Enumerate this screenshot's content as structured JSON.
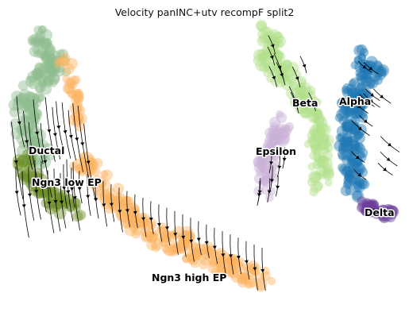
{
  "figure": {
    "title": "Velocity panINC+utv recompF split2"
  },
  "clusters": [
    {
      "name": "Ductal",
      "color": "#8fbc8f"
    },
    {
      "name": "Ngn3 low EP",
      "color": "#6b8e23"
    },
    {
      "name": "Ngn3 high EP",
      "color": "#fdb462"
    },
    {
      "name": "Beta",
      "color": "#b2df8a"
    },
    {
      "name": "Alpha",
      "color": "#1f78b4"
    },
    {
      "name": "Epsilon",
      "color": "#cab2d6"
    },
    {
      "name": "Delta",
      "color": "#6a3d9a"
    }
  ],
  "streamlines": {
    "color": "#000000"
  }
}
